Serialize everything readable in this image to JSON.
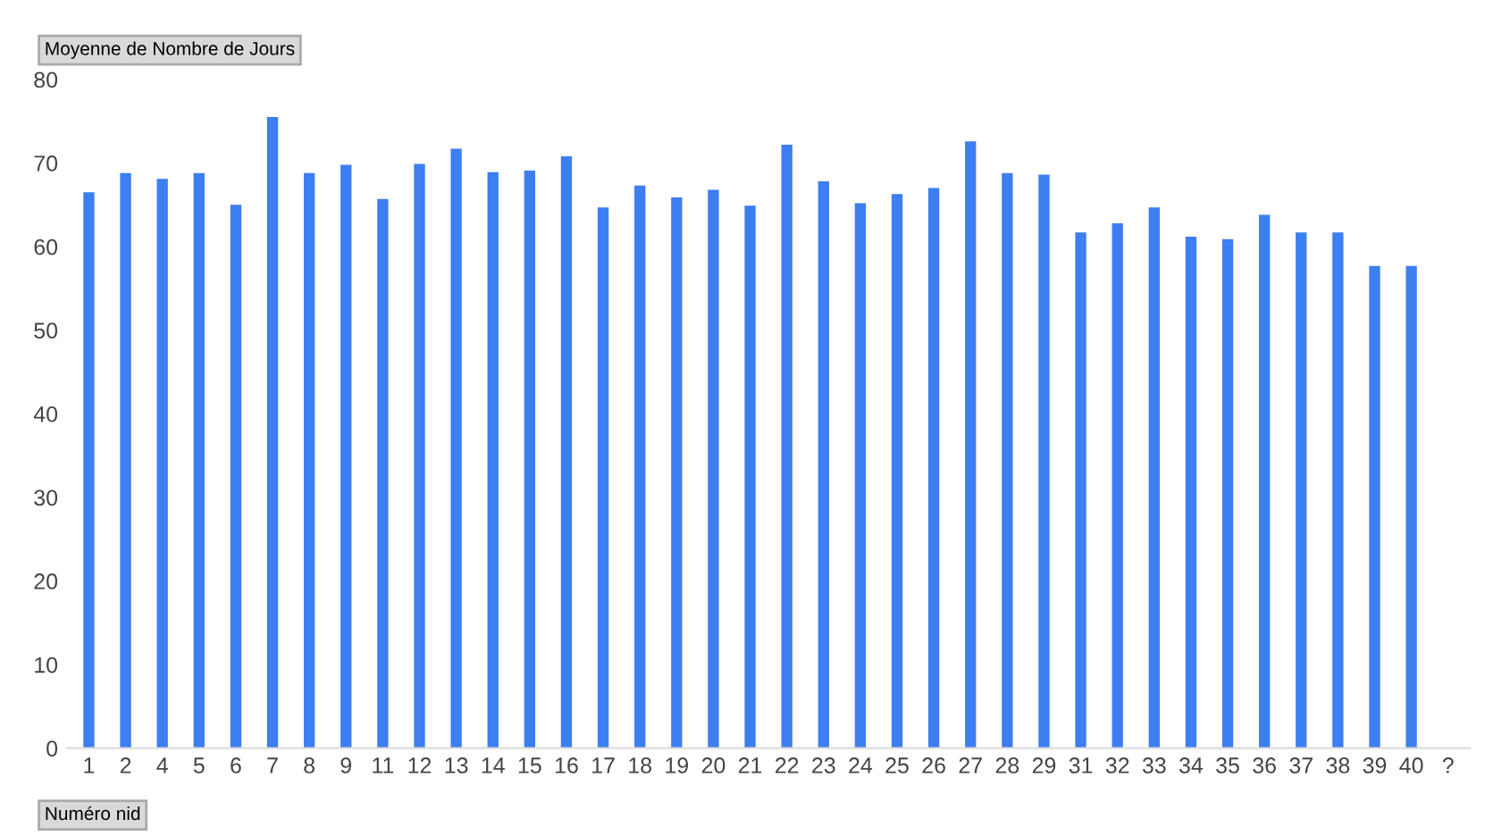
{
  "chart_data": {
    "type": "bar",
    "title": "Moyenne de Nombre de Jours",
    "xlabel": "Numéro nid",
    "categories": [
      "1",
      "2",
      "4",
      "5",
      "6",
      "7",
      "8",
      "9",
      "11",
      "12",
      "13",
      "14",
      "15",
      "16",
      "17",
      "18",
      "19",
      "20",
      "21",
      "22",
      "23",
      "24",
      "25",
      "26",
      "27",
      "28",
      "29",
      "31",
      "32",
      "33",
      "34",
      "35",
      "36",
      "37",
      "38",
      "39",
      "40",
      "?"
    ],
    "values": [
      66.5,
      68.8,
      68.1,
      68.8,
      65.0,
      75.5,
      68.8,
      69.8,
      65.7,
      69.9,
      71.7,
      68.9,
      69.1,
      70.8,
      64.7,
      67.3,
      65.9,
      66.8,
      64.9,
      72.2,
      67.8,
      65.2,
      66.3,
      67.0,
      72.6,
      68.8,
      68.6,
      61.7,
      62.8,
      64.7,
      61.2,
      60.9,
      63.8,
      61.7,
      61.7,
      57.7,
      57.7,
      null
    ],
    "color": "#3d7ef0",
    "ylim": [
      0,
      80
    ],
    "yticks": [
      0,
      10,
      20,
      30,
      40,
      50,
      60,
      70,
      80
    ],
    "grid": false,
    "legend": false
  }
}
